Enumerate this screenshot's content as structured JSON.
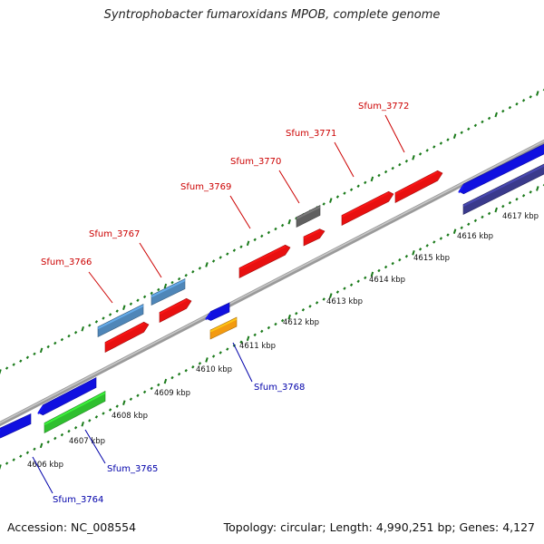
{
  "title": "Syntrophobacter fumaroxidans MPOB, complete genome",
  "footer": {
    "accession": "Accession: NC_008554",
    "summary": "Topology: circular; Length: 4,990,251 bp; Genes: 4,127"
  },
  "colors": {
    "backbone": "#8a8a8a",
    "ticks": "#1a7a1a",
    "label_forward": "#cc0000",
    "label_reverse": "#0000aa"
  },
  "scale": {
    "unit": "kbp",
    "labels": [
      "4606 kbp",
      "4607 kbp",
      "4608 kbp",
      "4609 kbp",
      "4610 kbp",
      "4611 kbp",
      "4612 kbp",
      "4613 kbp",
      "4614 kbp",
      "4615 kbp",
      "4616 kbp",
      "4617 kbp"
    ]
  },
  "genes": [
    {
      "label": "Sfum_3764",
      "strand": "reverse"
    },
    {
      "label": "Sfum_3765",
      "strand": "reverse"
    },
    {
      "label": "Sfum_3766",
      "strand": "forward"
    },
    {
      "label": "Sfum_3767",
      "strand": "forward"
    },
    {
      "label": "Sfum_3768",
      "strand": "reverse"
    },
    {
      "label": "Sfum_3769",
      "strand": "forward"
    },
    {
      "label": "Sfum_3770",
      "strand": "forward"
    },
    {
      "label": "Sfum_3771",
      "strand": "forward"
    },
    {
      "label": "Sfum_3772",
      "strand": "forward"
    }
  ]
}
